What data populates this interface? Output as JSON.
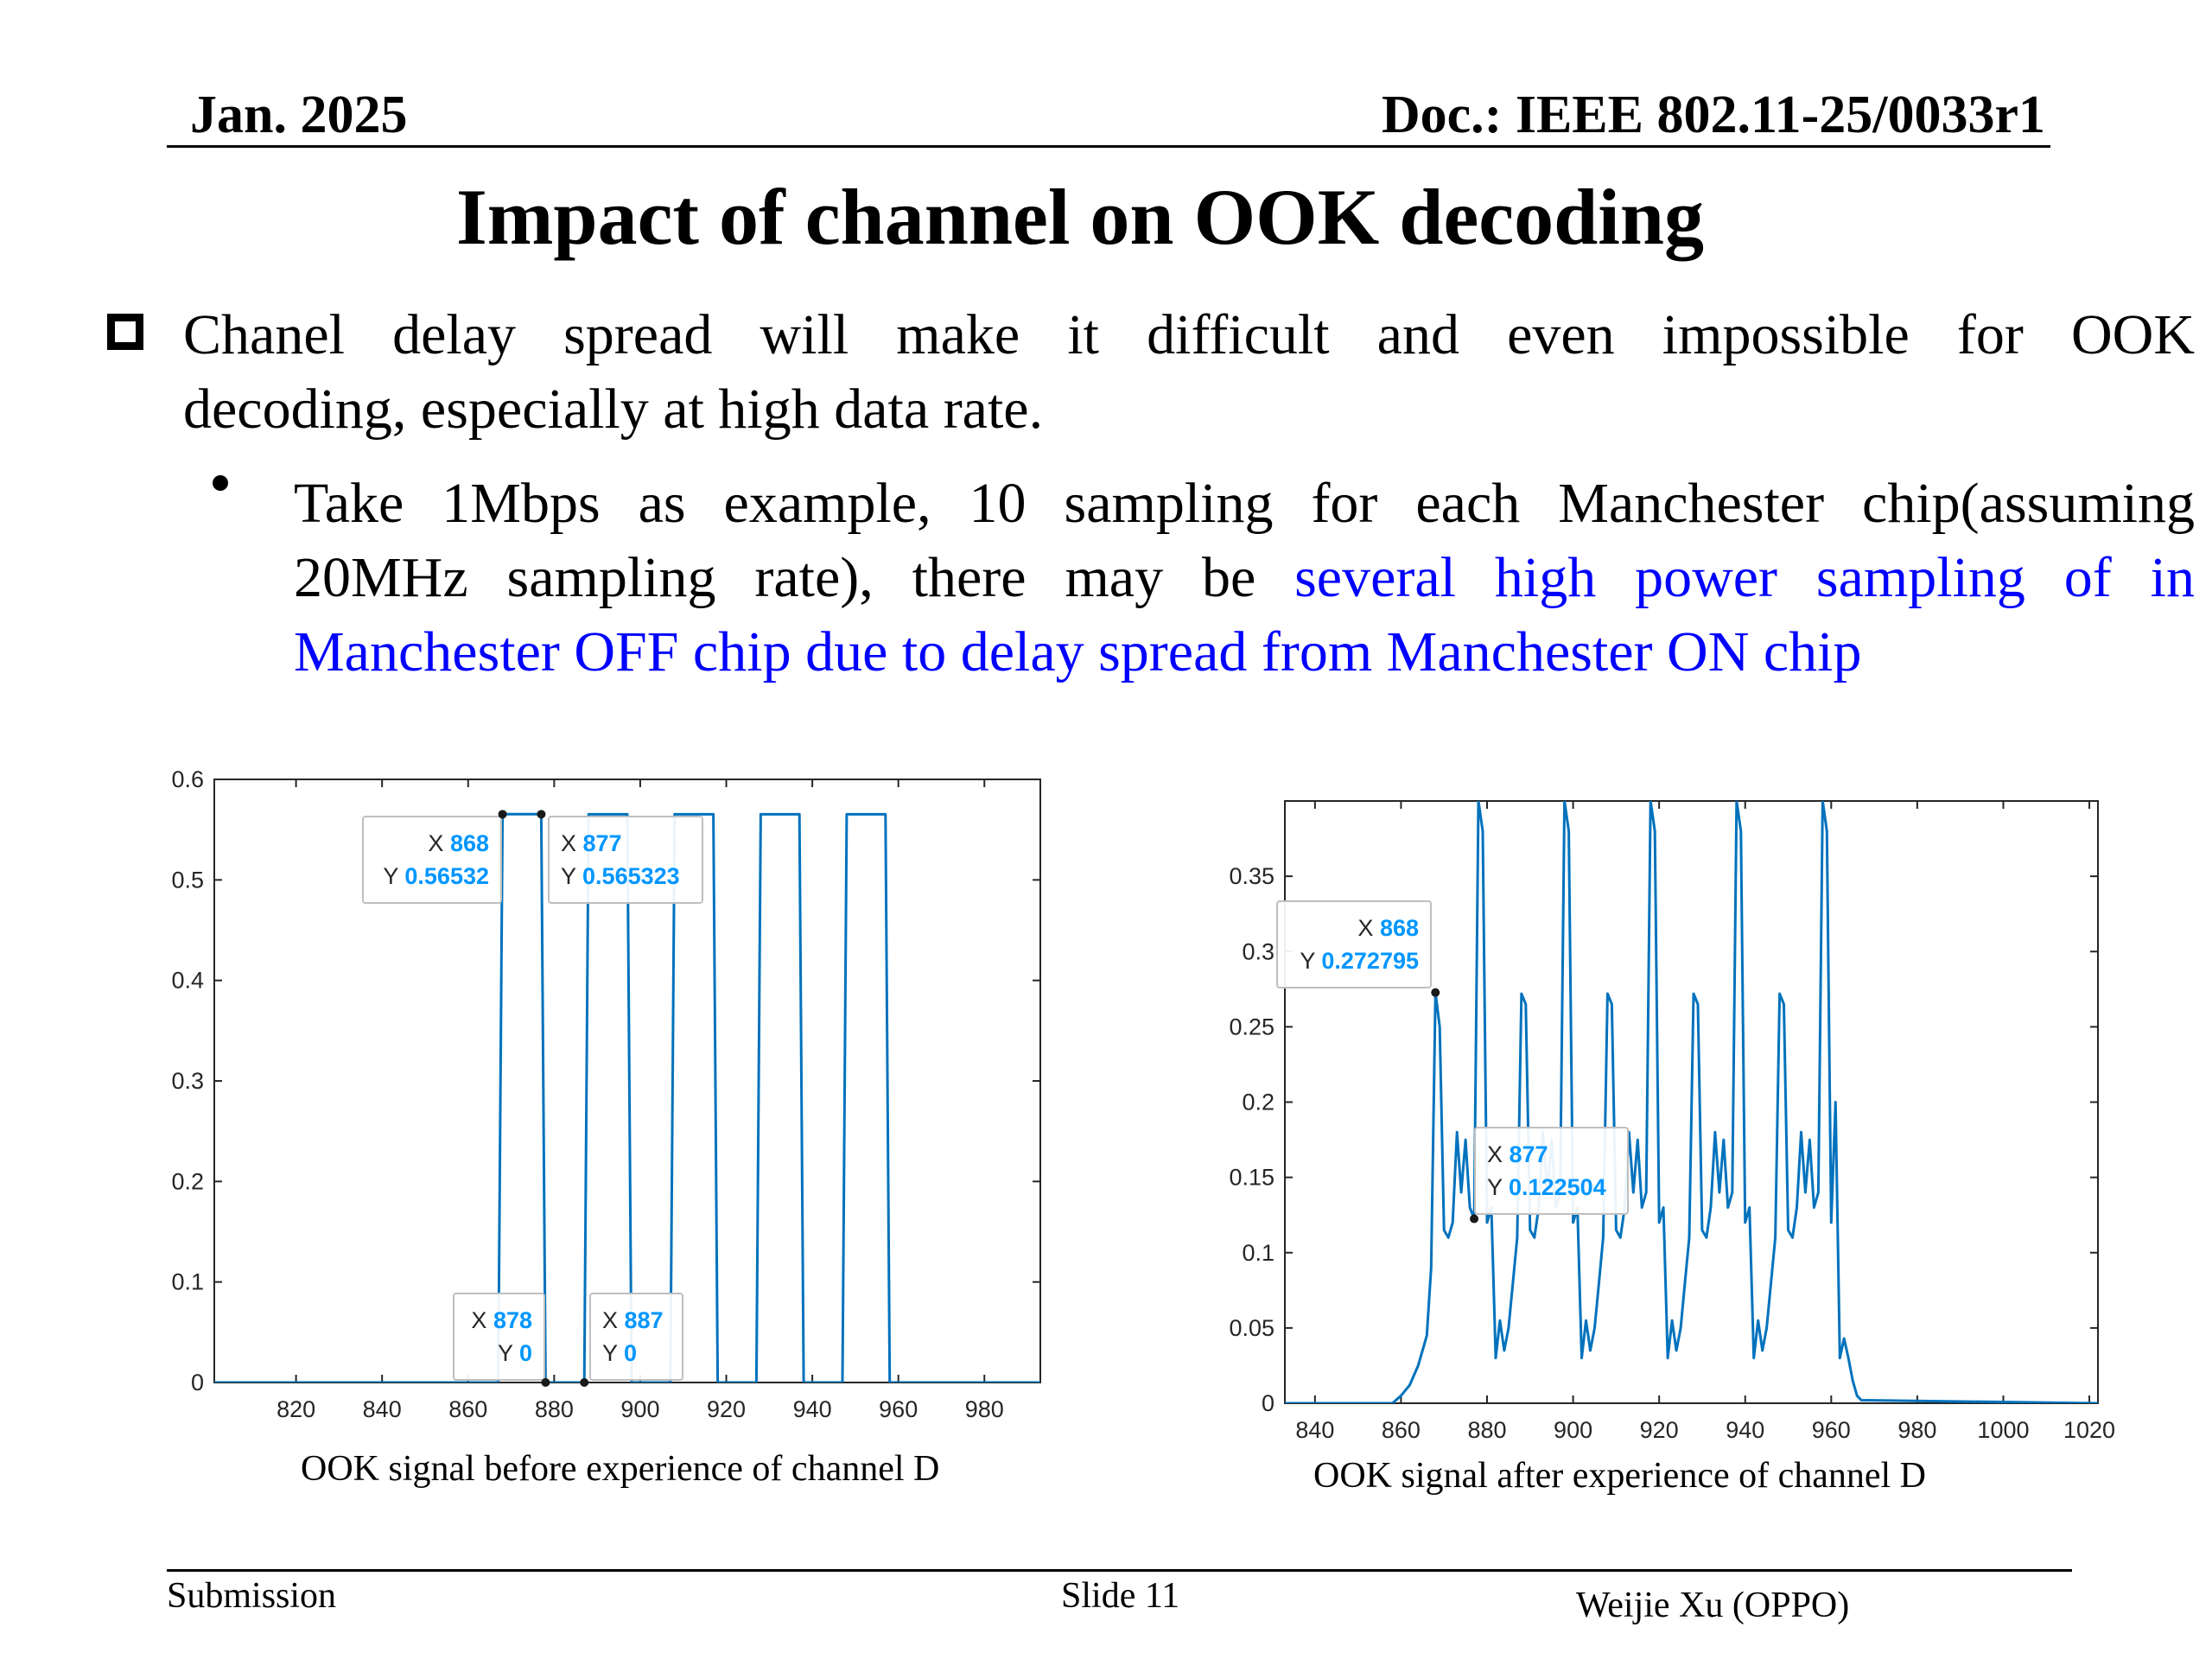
{
  "header": {
    "date": "Jan. 2025",
    "doc": "Doc.: IEEE 802.11-25/0033r1"
  },
  "title": "Impact of channel on OOK decoding",
  "bullet1": {
    "line1": "Chanel delay spread will make it difficult and even impossible for OOK",
    "line2": "decoding, especially at high data rate."
  },
  "bullet2": {
    "line1": "Take 1Mbps as example, 10 sampling for each Manchester chip(assuming",
    "line2_black": "20MHz sampling rate),  there may be ",
    "line2_blue": "several high power sampling of in",
    "line3_blue": "Manchester OFF chip due to delay spread from Manchester ON chip"
  },
  "footer": {
    "submission": "Submission",
    "slide": "Slide 11",
    "author": "Weijie Xu (OPPO)"
  },
  "colors": {
    "line": "#0072bd",
    "datatip_value": "#0096ff",
    "highlight_text": "#0000ff"
  },
  "chart_data": [
    {
      "type": "line",
      "caption": "OOK signal before experience of channel D",
      "xlim": [
        801,
        993
      ],
      "ylim": [
        0,
        0.6
      ],
      "xticks": [
        820,
        840,
        860,
        880,
        900,
        920,
        940,
        960,
        980
      ],
      "yticks": [
        0,
        0.1,
        0.2,
        0.3,
        0.4,
        0.5,
        0.6
      ],
      "xtick_labels": [
        "820",
        "840",
        "860",
        "880",
        "900",
        "920",
        "940",
        "960",
        "980"
      ],
      "ytick_labels": [
        "0",
        "0.1",
        "0.2",
        "0.3",
        "0.4",
        "0.5",
        "0.6"
      ],
      "x": [
        801,
        867,
        868,
        877,
        878,
        887,
        888,
        897,
        898,
        907,
        908,
        917,
        918,
        927,
        928,
        937,
        938,
        947,
        948,
        957,
        958,
        993
      ],
      "y": [
        0,
        0,
        0.56532,
        0.565323,
        0,
        0,
        0.5653,
        0.5653,
        0,
        0,
        0.5653,
        0.5653,
        0,
        0,
        0.5653,
        0.5653,
        0,
        0,
        0.5653,
        0.5653,
        0,
        0
      ],
      "datatips": [
        {
          "x": "868",
          "y": "0.56532",
          "at": [
            868,
            0.56532
          ],
          "x_label": "X",
          "y_label": "Y"
        },
        {
          "x": "877",
          "y": "0.565323",
          "at": [
            877,
            0.565323
          ],
          "x_label": "X",
          "y_label": "Y"
        },
        {
          "x": "878",
          "y": "0",
          "at": [
            878,
            0
          ],
          "x_label": "X",
          "y_label": "Y"
        },
        {
          "x": "887",
          "y": "0",
          "at": [
            887,
            0
          ],
          "x_label": "X",
          "y_label": "Y"
        }
      ]
    },
    {
      "type": "line",
      "caption": "OOK signal after experience of channel D",
      "xlim": [
        833,
        1022
      ],
      "ylim": [
        0,
        0.4
      ],
      "xticks": [
        840,
        860,
        880,
        900,
        920,
        940,
        960,
        980,
        1000,
        1020
      ],
      "yticks": [
        0,
        0.05,
        0.1,
        0.15,
        0.2,
        0.25,
        0.3,
        0.35
      ],
      "xtick_labels": [
        "840",
        "860",
        "880",
        "900",
        "920",
        "940",
        "960",
        "980",
        "1000",
        "1020"
      ],
      "ytick_labels": [
        "0",
        "0.05",
        "0.1",
        "0.15",
        "0.2",
        "0.25",
        "0.3",
        "0.35"
      ],
      "x": [
        833,
        858,
        860,
        862,
        864,
        866,
        867,
        868,
        869,
        870,
        871,
        872,
        873,
        874,
        875,
        876,
        877,
        878,
        879,
        880,
        881,
        882,
        883,
        884,
        885,
        886,
        887,
        888,
        889,
        890,
        891,
        892,
        893,
        894,
        895,
        896,
        897,
        898,
        899,
        900,
        901,
        902,
        903,
        904,
        905,
        906,
        907,
        908,
        909,
        910,
        911,
        912,
        913,
        914,
        915,
        916,
        917,
        918,
        919,
        920,
        921,
        922,
        923,
        924,
        925,
        926,
        927,
        928,
        929,
        930,
        931,
        932,
        933,
        934,
        935,
        936,
        937,
        938,
        939,
        940,
        941,
        942,
        943,
        944,
        945,
        946,
        947,
        948,
        949,
        950,
        951,
        952,
        953,
        954,
        955,
        956,
        957,
        958,
        959,
        960,
        961,
        962,
        963,
        964,
        965,
        966,
        967,
        1022
      ],
      "y": [
        0,
        0,
        0.005,
        0.012,
        0.025,
        0.045,
        0.09,
        0.272795,
        0.25,
        0.115,
        0.11,
        0.12,
        0.18,
        0.14,
        0.175,
        0.13,
        0.122504,
        0.4,
        0.38,
        0.12,
        0.13,
        0.03,
        0.055,
        0.035,
        0.05,
        0.08,
        0.11,
        0.272,
        0.265,
        0.115,
        0.11,
        0.13,
        0.18,
        0.14,
        0.175,
        0.13,
        0.14,
        0.4,
        0.38,
        0.12,
        0.13,
        0.03,
        0.055,
        0.035,
        0.05,
        0.08,
        0.11,
        0.272,
        0.265,
        0.115,
        0.11,
        0.13,
        0.18,
        0.14,
        0.175,
        0.13,
        0.14,
        0.4,
        0.38,
        0.12,
        0.13,
        0.03,
        0.055,
        0.035,
        0.05,
        0.08,
        0.11,
        0.272,
        0.265,
        0.115,
        0.11,
        0.13,
        0.18,
        0.14,
        0.175,
        0.13,
        0.14,
        0.4,
        0.38,
        0.12,
        0.13,
        0.03,
        0.055,
        0.035,
        0.05,
        0.08,
        0.11,
        0.272,
        0.265,
        0.115,
        0.11,
        0.13,
        0.18,
        0.14,
        0.175,
        0.13,
        0.14,
        0.4,
        0.38,
        0.12,
        0.2,
        0.03,
        0.043,
        0.03,
        0.015,
        0.005,
        0.002,
        0
      ],
      "datatips": [
        {
          "x": "868",
          "y": "0.272795",
          "at": [
            868,
            0.272795
          ],
          "x_label": "X",
          "y_label": "Y"
        },
        {
          "x": "877",
          "y": "0.122504",
          "at": [
            877,
            0.122504
          ],
          "x_label": "X",
          "y_label": "Y"
        }
      ]
    }
  ]
}
